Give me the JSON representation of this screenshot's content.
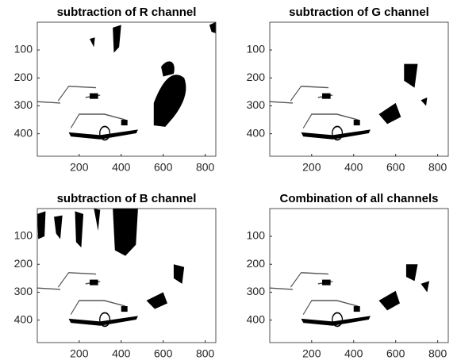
{
  "chart_data": [
    {
      "type": "image",
      "title": "subtraction of R channel",
      "xlim": [
        0.5,
        850.5
      ],
      "ylim": [
        0.5,
        480.5
      ],
      "xticks": [
        200,
        400,
        600,
        800
      ],
      "yticks": [
        100,
        200,
        300,
        400
      ]
    },
    {
      "type": "image",
      "title": "subtraction of G channel",
      "xlim": [
        0.5,
        850.5
      ],
      "ylim": [
        0.5,
        480.5
      ],
      "xticks": [
        200,
        400,
        600,
        800
      ],
      "yticks": [
        100,
        200,
        300,
        400
      ]
    },
    {
      "type": "image",
      "title": "subtraction of B channel",
      "xlim": [
        0.5,
        850.5
      ],
      "ylim": [
        0.5,
        480.5
      ],
      "xticks": [
        200,
        400,
        600,
        800
      ],
      "yticks": [
        100,
        200,
        300,
        400
      ]
    },
    {
      "type": "image",
      "title": "Combination of all channels",
      "xlim": [
        0.5,
        850.5
      ],
      "ylim": [
        0.5,
        480.5
      ],
      "xticks": [
        200,
        400,
        600,
        800
      ],
      "yticks": [
        100,
        200,
        300,
        400
      ]
    }
  ]
}
